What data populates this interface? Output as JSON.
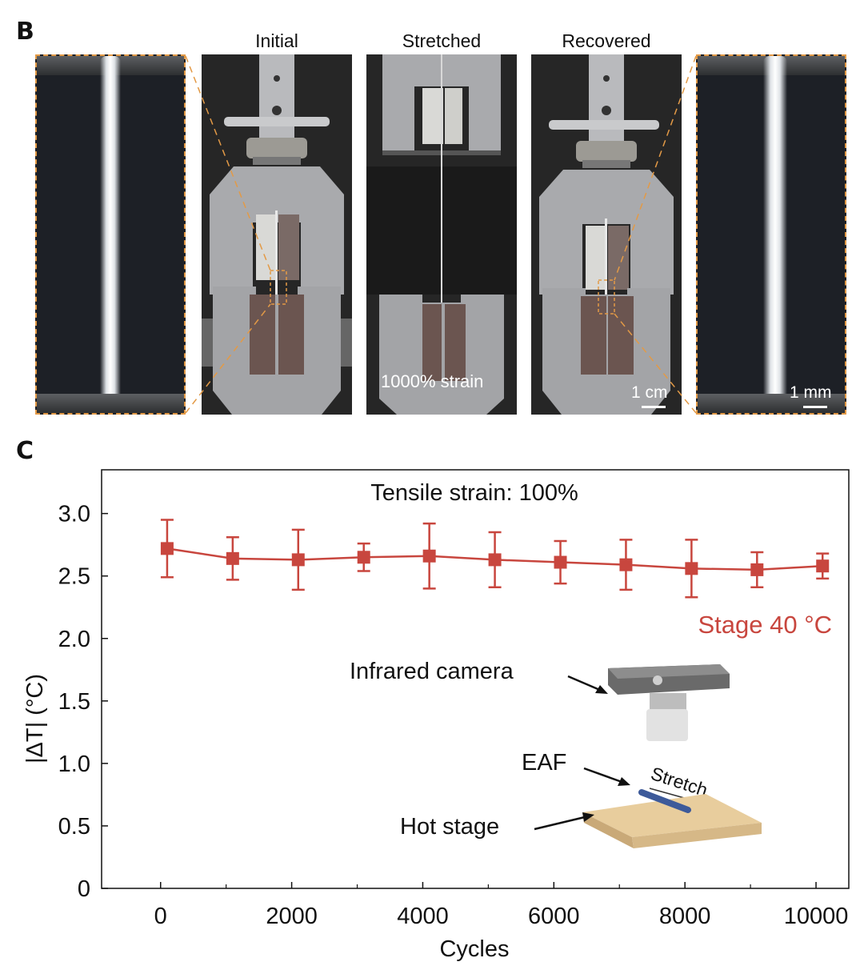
{
  "panel_b": {
    "letter": "B",
    "labels": {
      "initial": "Initial",
      "stretched": "Stretched",
      "recovered": "Recovered"
    },
    "strain_text": "1000% strain",
    "scale_cm": "1 cm",
    "scale_mm": "1 mm"
  },
  "panel_c": {
    "letter": "C",
    "inset": {
      "camera_label": "Infrared camera",
      "eaf_label": "EAF",
      "stretch_label": "Stretch",
      "stage_label": "Hot stage"
    }
  },
  "chart_data": {
    "type": "line",
    "title": "Tensile strain: 100%",
    "xlabel": "Cycles",
    "ylabel": "|ΔT| (°C)",
    "xlim": [
      -900,
      10500
    ],
    "ylim": [
      0,
      3.35
    ],
    "xticks": [
      0,
      2000,
      4000,
      6000,
      8000,
      10000
    ],
    "xtick_labels": [
      "0",
      "2000",
      "4000",
      "6000",
      "8000",
      "10000"
    ],
    "yticks": [
      0,
      0.5,
      1.0,
      1.5,
      2.0,
      2.5,
      3.0
    ],
    "ytick_labels": [
      "0",
      "0.5",
      "1.0",
      "1.5",
      "2.0",
      "2.5",
      "3.0"
    ],
    "grid": false,
    "series": [
      {
        "name": "Stage 40 °C",
        "color": "#c8463e",
        "x": [
          100,
          1100,
          2100,
          3100,
          4100,
          5100,
          6100,
          7100,
          8100,
          9100,
          10100
        ],
        "y": [
          2.72,
          2.64,
          2.63,
          2.65,
          2.66,
          2.63,
          2.61,
          2.59,
          2.56,
          2.55,
          2.58
        ],
        "error": [
          0.23,
          0.17,
          0.24,
          0.11,
          0.26,
          0.22,
          0.17,
          0.2,
          0.23,
          0.14,
          0.1
        ]
      }
    ]
  }
}
